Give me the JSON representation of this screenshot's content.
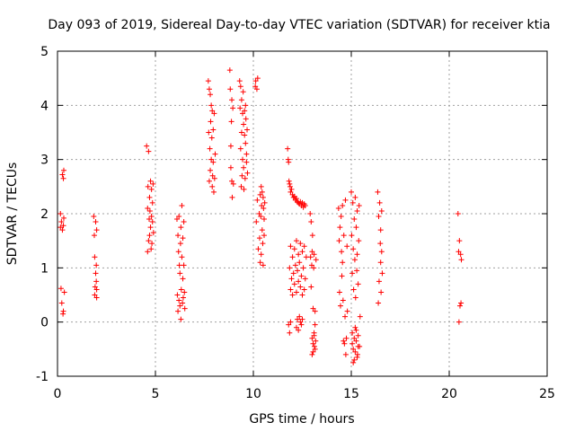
{
  "chart_data": {
    "type": "scatter",
    "title": "Day 093 of 2019, Sidereal Day-to-day VTEC variation (SDTVAR) for receiver ktia",
    "xlabel": "GPS time / hours",
    "ylabel": "SDTVAR / TECUs",
    "xlim": [
      0,
      25
    ],
    "ylim": [
      -1,
      5
    ],
    "x_ticks": [
      0,
      5,
      10,
      15,
      20,
      25
    ],
    "x_tick_labels": [
      "0",
      "5",
      "10",
      "15",
      "20",
      "25"
    ],
    "y_ticks": [
      -1,
      0,
      1,
      2,
      3,
      4,
      5
    ],
    "y_tick_labels": [
      "-1",
      "0",
      "1",
      "2",
      "3",
      "4",
      "5"
    ],
    "grid": true,
    "marker": "+",
    "marker_color": "#ff0000",
    "series": [
      {
        "name": "SDTVAR",
        "x": [
          0.15,
          0.15,
          0.18,
          0.2,
          0.22,
          0.25,
          0.25,
          0.28,
          0.3,
          0.3,
          0.3,
          0.32,
          0.32,
          0.35,
          1.85,
          1.88,
          1.9,
          1.9,
          1.92,
          1.95,
          1.95,
          1.98,
          1.98,
          2.0,
          2.0,
          2.0,
          4.55,
          4.6,
          4.6,
          4.62,
          4.65,
          4.65,
          4.68,
          4.7,
          4.7,
          4.72,
          4.75,
          4.75,
          4.78,
          4.8,
          4.8,
          4.82,
          4.85,
          4.85,
          4.88,
          4.9,
          6.1,
          6.12,
          6.15,
          6.15,
          6.18,
          6.2,
          6.2,
          6.22,
          6.25,
          6.25,
          6.28,
          6.3,
          6.3,
          6.32,
          6.35,
          6.35,
          6.38,
          6.4,
          6.4,
          6.42,
          6.45,
          6.45,
          6.48,
          6.5,
          7.7,
          7.72,
          7.75,
          7.75,
          7.78,
          7.8,
          7.8,
          7.82,
          7.85,
          7.85,
          7.88,
          7.9,
          7.9,
          7.92,
          7.95,
          7.95,
          7.98,
          8.0,
          8.02,
          8.05,
          8.8,
          8.82,
          8.85,
          8.85,
          8.88,
          8.9,
          8.9,
          8.92,
          8.95,
          8.98,
          9.3,
          9.32,
          9.35,
          9.35,
          9.38,
          9.4,
          9.4,
          9.42,
          9.45,
          9.45,
          9.48,
          9.5,
          9.5,
          9.52,
          9.55,
          9.55,
          9.58,
          9.6,
          9.6,
          9.62,
          9.65,
          9.65,
          9.68,
          9.7,
          10.1,
          10.12,
          10.15,
          10.18,
          10.2,
          10.22,
          10.25,
          10.3,
          10.32,
          10.35,
          10.35,
          10.38,
          10.4,
          10.4,
          10.42,
          10.45,
          10.45,
          10.48,
          10.5,
          10.5,
          10.52,
          10.55,
          10.55,
          10.58,
          11.75,
          11.78,
          11.8,
          11.82,
          11.85,
          11.88,
          11.9,
          11.95,
          12.0,
          12.05,
          12.1,
          12.15,
          12.2,
          12.25,
          12.3,
          12.35,
          12.4,
          12.45,
          12.5,
          12.55,
          12.6,
          12.65,
          11.85,
          11.9,
          11.9,
          11.95,
          12.0,
          12.0,
          12.05,
          12.1,
          12.1,
          12.15,
          12.2,
          12.2,
          12.25,
          12.3,
          12.3,
          12.35,
          12.4,
          12.4,
          12.45,
          12.5,
          12.5,
          12.55,
          12.6,
          12.6,
          12.65,
          12.7,
          11.8,
          11.85,
          11.9,
          12.2,
          12.25,
          12.3,
          12.35,
          12.4,
          12.45,
          12.5,
          12.9,
          12.92,
          12.95,
          12.95,
          12.98,
          13.0,
          13.0,
          13.02,
          13.05,
          13.05,
          13.08,
          13.1,
          13.1,
          13.12,
          13.15,
          13.15,
          13.18,
          13.2,
          13.0,
          13.05,
          13.1,
          13.15,
          14.35,
          14.38,
          14.4,
          14.42,
          14.45,
          14.48,
          14.5,
          14.52,
          14.55,
          14.55,
          14.58,
          14.6,
          14.62,
          14.65,
          14.68,
          14.7,
          14.72,
          14.75,
          14.78,
          14.8,
          15.0,
          15.02,
          15.05,
          15.05,
          15.08,
          15.1,
          15.1,
          15.12,
          15.15,
          15.15,
          15.18,
          15.2,
          15.2,
          15.22,
          15.25,
          15.25,
          15.28,
          15.3,
          15.3,
          15.32,
          15.35,
          15.35,
          15.38,
          15.4,
          15.42,
          15.45,
          15.05,
          15.1,
          15.15,
          15.2,
          15.25,
          15.3,
          15.35,
          16.35,
          16.38,
          16.4,
          16.42,
          16.45,
          16.48,
          16.5,
          16.5,
          16.52,
          16.55,
          16.55,
          16.58,
          20.45,
          20.48,
          20.5,
          20.52,
          20.55,
          20.58,
          20.6,
          20.62
        ],
        "y": [
          2.0,
          1.75,
          0.62,
          1.85,
          0.35,
          2.72,
          1.7,
          0.15,
          2.65,
          1.78,
          0.2,
          2.8,
          1.92,
          0.55,
          1.95,
          1.6,
          0.5,
          1.2,
          0.65,
          1.85,
          0.9,
          1.05,
          0.75,
          1.7,
          0.45,
          0.6,
          3.25,
          2.1,
          1.3,
          2.5,
          3.15,
          1.5,
          1.9,
          2.3,
          1.6,
          2.05,
          2.6,
          1.75,
          1.35,
          2.45,
          1.95,
          1.45,
          2.2,
          1.85,
          2.55,
          1.65,
          1.9,
          0.5,
          1.6,
          0.2,
          1.3,
          1.95,
          0.4,
          1.05,
          0.9,
          0.3,
          1.45,
          1.75,
          0.05,
          0.6,
          1.2,
          2.15,
          0.35,
          0.8,
          1.55,
          0.45,
          1.05,
          1.85,
          0.55,
          0.25,
          4.45,
          3.5,
          4.3,
          2.6,
          3.2,
          4.2,
          2.8,
          3.7,
          4.0,
          3.0,
          3.4,
          3.9,
          2.5,
          2.7,
          3.55,
          2.95,
          2.4,
          3.85,
          2.65,
          3.1,
          4.65,
          4.3,
          3.25,
          2.85,
          3.7,
          2.6,
          4.1,
          2.3,
          3.95,
          2.55,
          4.45,
          3.95,
          3.2,
          4.35,
          2.5,
          3.5,
          4.1,
          2.7,
          3.85,
          3.0,
          4.25,
          2.85,
          3.65,
          2.45,
          3.45,
          3.9,
          2.65,
          3.3,
          4.0,
          3.75,
          3.1,
          2.95,
          3.55,
          2.75,
          4.35,
          4.45,
          1.85,
          4.3,
          2.25,
          4.5,
          1.35,
          2.0,
          1.55,
          2.35,
          1.1,
          1.95,
          2.5,
          1.25,
          2.15,
          1.7,
          2.4,
          1.45,
          2.3,
          1.05,
          2.1,
          1.6,
          1.9,
          2.2,
          3.2,
          3.0,
          2.95,
          2.6,
          2.55,
          2.5,
          2.4,
          2.45,
          2.35,
          2.3,
          2.32,
          2.25,
          2.28,
          2.22,
          2.2,
          2.18,
          2.22,
          2.15,
          2.2,
          2.12,
          2.18,
          2.15,
          1.0,
          0.6,
          1.4,
          0.8,
          1.2,
          0.5,
          0.9,
          1.35,
          0.7,
          1.05,
          1.5,
          0.55,
          0.95,
          1.25,
          0.75,
          1.1,
          1.45,
          0.65,
          0.85,
          1.3,
          0.5,
          1.0,
          1.4,
          0.6,
          0.8,
          1.2,
          -0.05,
          -0.2,
          0.0,
          -0.1,
          0.05,
          -0.15,
          0.1,
          0.0,
          -0.05,
          0.05,
          2.0,
          1.2,
          1.85,
          0.65,
          1.05,
          1.3,
          -0.3,
          1.6,
          0.25,
          -0.55,
          1.0,
          -0.2,
          1.25,
          -0.45,
          -0.05,
          0.2,
          -0.35,
          1.15,
          -0.6,
          -0.4,
          -0.25,
          -0.5,
          2.1,
          1.5,
          0.55,
          1.75,
          0.3,
          1.95,
          1.3,
          0.85,
          2.15,
          1.1,
          0.4,
          -0.35,
          1.6,
          -0.4,
          0.1,
          2.25,
          -0.6,
          -0.3,
          1.4,
          0.2,
          2.4,
          1.6,
          -0.2,
          0.9,
          2.2,
          1.35,
          -0.5,
          0.6,
          1.9,
          -0.7,
          1.15,
          2.3,
          -0.1,
          0.45,
          1.75,
          -0.35,
          0.95,
          2.05,
          1.25,
          -0.6,
          0.7,
          -0.25,
          1.5,
          2.15,
          -0.45,
          0.1,
          -0.4,
          -0.75,
          -0.3,
          -0.55,
          -0.15,
          -0.65,
          -0.45,
          2.4,
          0.35,
          1.95,
          0.75,
          2.2,
          1.45,
          1.1,
          1.7,
          0.55,
          2.05,
          1.3,
          0.9,
          2.0,
          1.3,
          0.0,
          1.5,
          0.3,
          1.25,
          0.35,
          1.15
        ]
      }
    ]
  }
}
